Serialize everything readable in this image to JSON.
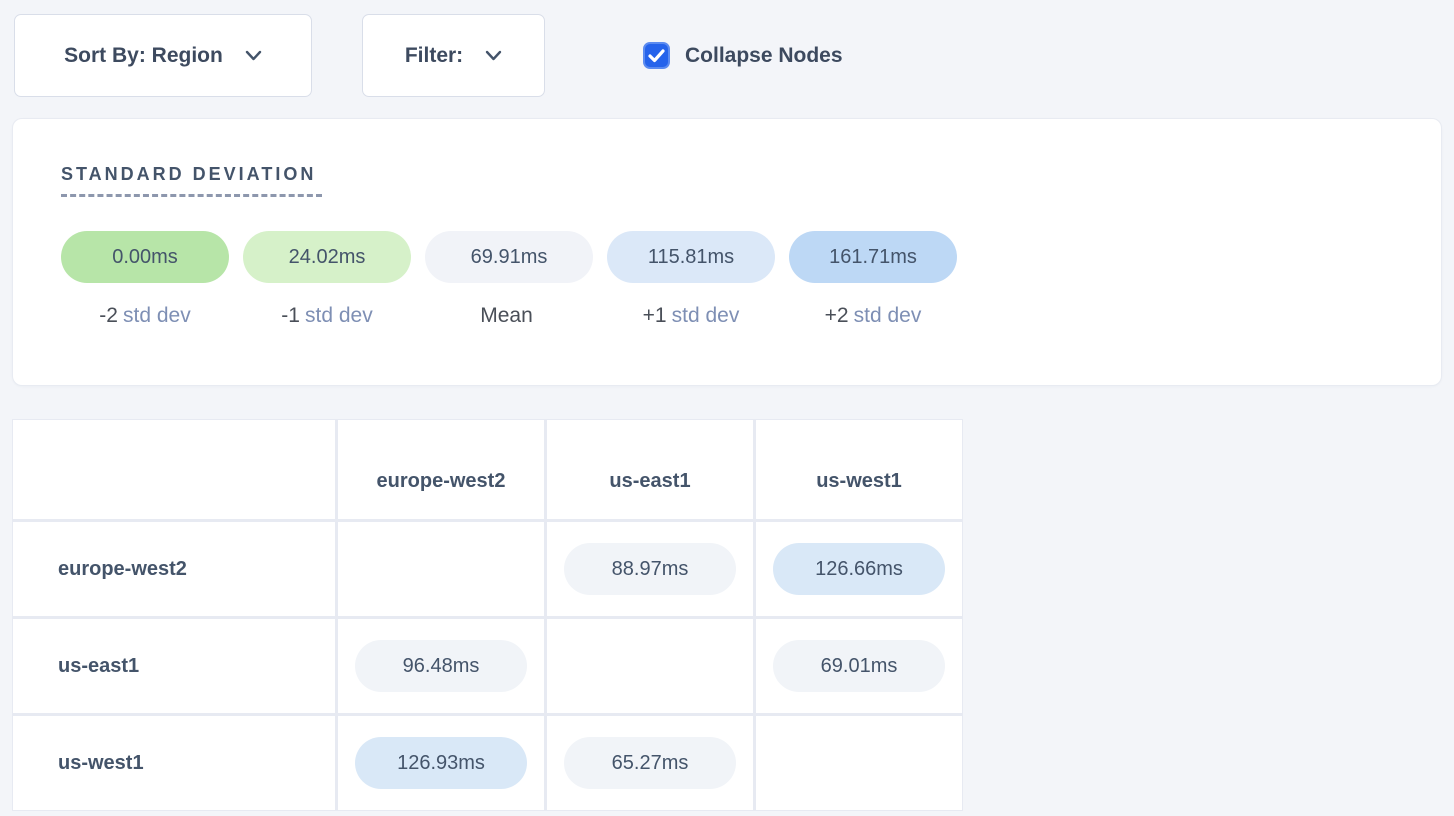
{
  "controls": {
    "sort_by_label": "Sort By: Region",
    "filter_label": "Filter:",
    "collapse_nodes_label": "Collapse Nodes",
    "collapse_nodes_checked": true
  },
  "legend": {
    "title": "STANDARD DEVIATION",
    "items": [
      {
        "value": "0.00ms",
        "label_num": "-2",
        "label_text": "std dev",
        "color": "#b7e5a8"
      },
      {
        "value": "24.02ms",
        "label_num": "-1",
        "label_text": "std dev",
        "color": "#d6f1c9"
      },
      {
        "value": "69.91ms",
        "label_num": "Mean",
        "label_text": "",
        "color": "#f1f3f8"
      },
      {
        "value": "115.81ms",
        "label_num": "+1",
        "label_text": "std dev",
        "color": "#dbe8f8"
      },
      {
        "value": "161.71ms",
        "label_num": "+2",
        "label_text": "std dev",
        "color": "#bdd8f5"
      }
    ]
  },
  "matrix": {
    "columns": [
      "europe-west2",
      "us-east1",
      "us-west1"
    ],
    "rows": [
      {
        "label": "europe-west2",
        "cells": [
          null,
          {
            "value": "88.97ms",
            "tone": "gray"
          },
          {
            "value": "126.66ms",
            "tone": "blue"
          }
        ]
      },
      {
        "label": "us-east1",
        "cells": [
          {
            "value": "96.48ms",
            "tone": "gray"
          },
          null,
          {
            "value": "69.01ms",
            "tone": "gray"
          }
        ]
      },
      {
        "label": "us-west1",
        "cells": [
          {
            "value": "126.93ms",
            "tone": "blue"
          },
          {
            "value": "65.27ms",
            "tone": "gray"
          },
          null
        ]
      }
    ]
  },
  "colors": {
    "checkbox_blue": "#2563eb",
    "pill_gray": "#f1f4f8",
    "pill_blue": "#d9e8f7",
    "text_slate": "#44546a",
    "page_bg": "#f3f5f9"
  }
}
